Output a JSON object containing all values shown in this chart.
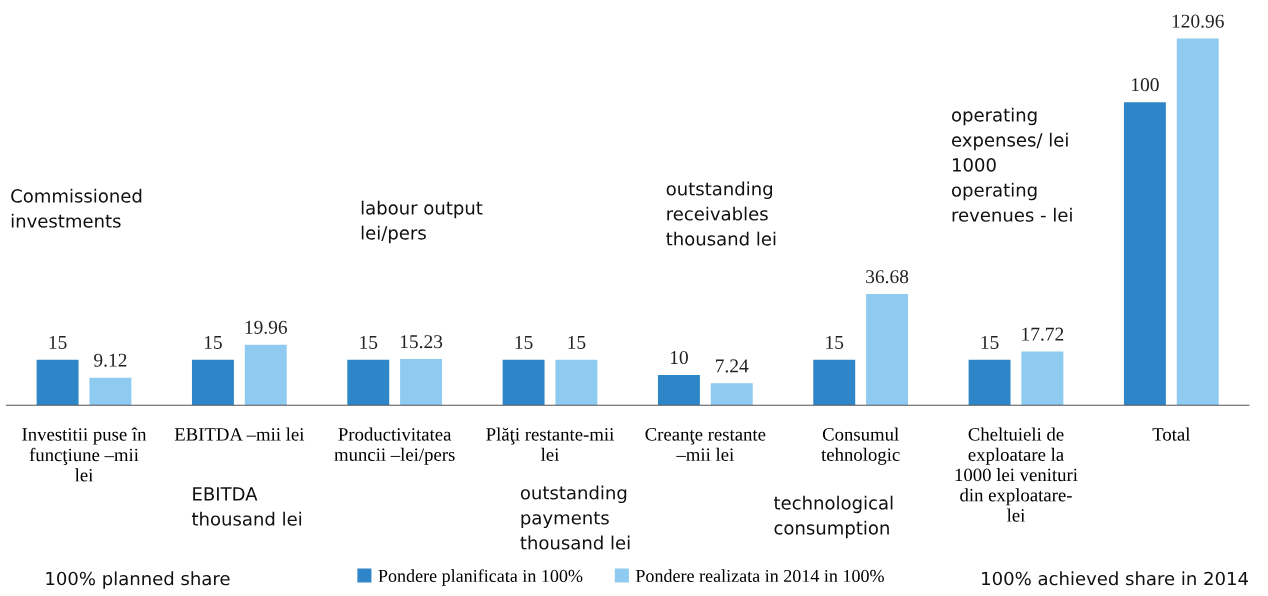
{
  "chart_data": {
    "type": "bar",
    "categories": [
      "Investitii puse în\nfuncţiune –mii\nlei",
      "EBITDA –mii lei",
      "Productivitatea\nmuncii –lei/pers",
      "Plăţi restante-mii\nlei",
      "Creanţe restante\n–mii lei",
      "Consumul\ntehnologic",
      "Cheltuieli de\nexploatare la\n1000 lei venituri\ndin exploatare-\nlei",
      "Total"
    ],
    "series": [
      {
        "name": "Pondere planificata in 100%",
        "color": "#2e86c9",
        "values": [
          15,
          15,
          15,
          15,
          10,
          15,
          15,
          100
        ]
      },
      {
        "name": "Pondere realizata in 2014 in 100%",
        "color": "#8fcaf0",
        "values": [
          9.12,
          19.96,
          15.23,
          15,
          7.24,
          36.68,
          17.72,
          120.96
        ]
      }
    ],
    "tick_labels": "x",
    "data_labels": true,
    "legend": "bottom",
    "grid": false,
    "annotations": [
      "Commissioned\ninvestments",
      "labour output\nlei/pers",
      "outstanding\nreceivables\nthousand lei",
      "operating\nexpenses/ lei\n1000\noperating\nrevenues - lei",
      "EBITDA\nthousand lei",
      "outstanding\npayments\nthousand lei",
      "technological\nconsumption",
      "100% planned share",
      "100% achieved share in 2014"
    ]
  }
}
